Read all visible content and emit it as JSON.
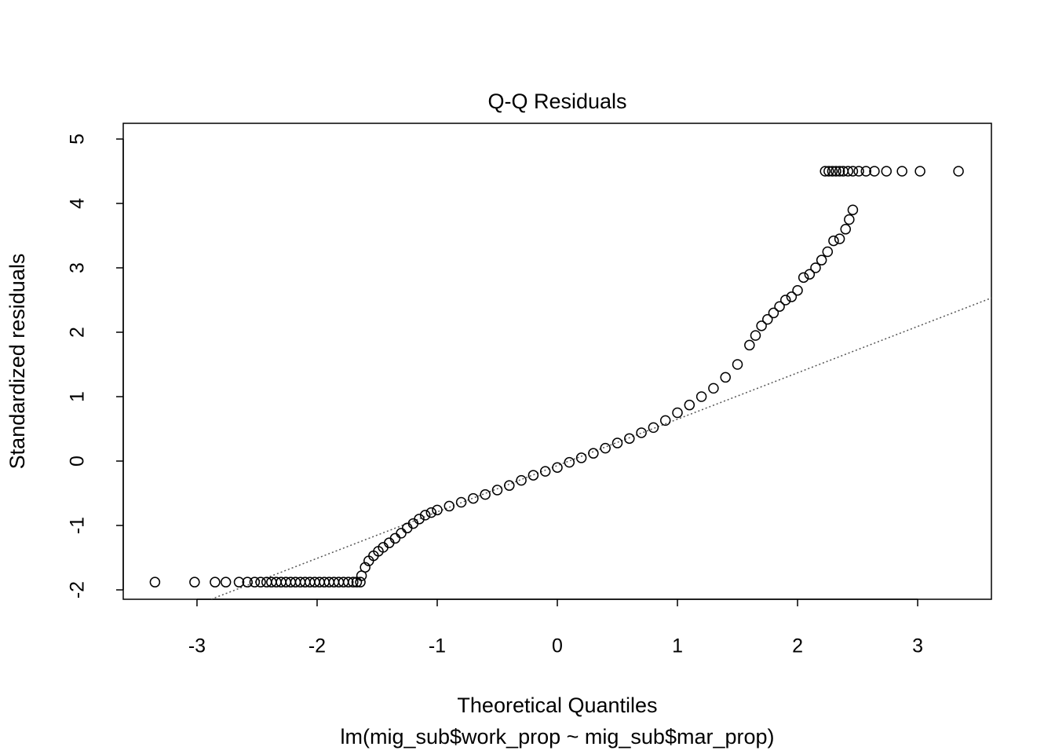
{
  "chart_data": {
    "type": "scatter",
    "title": "Q-Q Residuals",
    "x_label": "Theoretical Quantiles",
    "subtitle": "lm(mig_sub$work_prop ~ mig_sub$mar_prop)",
    "y_label": "Standardized residuals",
    "xlim": [
      -3.614,
      3.614
    ],
    "ylim": [
      -2.146,
      5.244
    ],
    "xticks": [
      -3,
      -2,
      -1,
      0,
      1,
      2,
      3
    ],
    "yticks": [
      -2,
      -1,
      0,
      1,
      2,
      3,
      4,
      5
    ],
    "color": "#000000",
    "qq_line": {
      "intercept": -0.07,
      "slope": 0.72,
      "color": "#555555"
    },
    "x": [
      -3.35,
      -3.02,
      -2.85,
      -2.76,
      -2.65,
      -2.58,
      -2.52,
      -2.47,
      -2.42,
      -2.38,
      -2.34,
      -2.3,
      -2.26,
      -2.22,
      -2.18,
      -2.14,
      -2.1,
      -2.06,
      -2.02,
      -1.98,
      -1.94,
      -1.9,
      -1.86,
      -1.82,
      -1.78,
      -1.74,
      -1.7,
      -1.67,
      -1.64,
      -1.63,
      -1.6,
      -1.57,
      -1.53,
      -1.49,
      -1.45,
      -1.4,
      -1.35,
      -1.3,
      -1.25,
      -1.2,
      -1.15,
      -1.1,
      -1.05,
      -1.0,
      -0.9,
      -0.8,
      -0.7,
      -0.6,
      -0.5,
      -0.4,
      -0.3,
      -0.2,
      -0.1,
      0,
      0.1,
      0.2,
      0.3,
      0.4,
      0.5,
      0.6,
      0.7,
      0.8,
      0.9,
      1.0,
      1.1,
      1.2,
      1.3,
      1.4,
      1.5,
      1.6,
      1.65,
      1.7,
      1.75,
      1.8,
      1.85,
      1.9,
      1.95,
      2.0,
      2.05,
      2.1,
      2.15,
      2.2,
      2.25,
      2.3,
      2.35,
      2.4,
      2.43,
      2.46,
      2.23,
      2.26,
      2.29,
      2.32,
      2.35,
      2.38,
      2.42,
      2.46,
      2.51,
      2.57,
      2.64,
      2.74,
      2.87,
      3.02,
      3.34
    ],
    "values": [
      -1.88,
      -1.88,
      -1.88,
      -1.88,
      -1.88,
      -1.88,
      -1.88,
      -1.88,
      -1.88,
      -1.88,
      -1.88,
      -1.88,
      -1.88,
      -1.88,
      -1.88,
      -1.88,
      -1.88,
      -1.88,
      -1.88,
      -1.88,
      -1.88,
      -1.88,
      -1.88,
      -1.88,
      -1.88,
      -1.88,
      -1.88,
      -1.88,
      -1.88,
      -1.78,
      -1.65,
      -1.55,
      -1.47,
      -1.4,
      -1.34,
      -1.27,
      -1.2,
      -1.12,
      -1.04,
      -0.97,
      -0.9,
      -0.84,
      -0.8,
      -0.76,
      -0.7,
      -0.64,
      -0.58,
      -0.52,
      -0.45,
      -0.38,
      -0.3,
      -0.22,
      -0.16,
      -0.1,
      -0.02,
      0.05,
      0.12,
      0.2,
      0.28,
      0.35,
      0.44,
      0.52,
      0.63,
      0.75,
      0.87,
      1.0,
      1.13,
      1.3,
      1.5,
      1.8,
      1.95,
      2.1,
      2.2,
      2.3,
      2.4,
      2.5,
      2.55,
      2.65,
      2.85,
      2.9,
      3.0,
      3.12,
      3.25,
      3.42,
      3.45,
      3.6,
      3.75,
      3.9,
      4.5,
      4.5,
      4.5,
      4.5,
      4.5,
      4.5,
      4.5,
      4.5,
      4.5,
      4.5,
      4.5,
      4.5,
      4.5,
      4.5,
      4.5
    ]
  }
}
